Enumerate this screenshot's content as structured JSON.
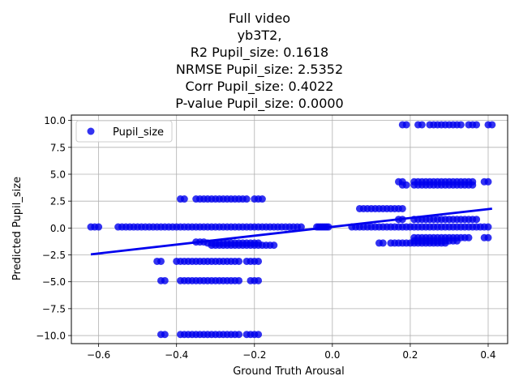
{
  "chart_data": {
    "type": "scatter",
    "title_lines": [
      "Full video",
      "yb3T2,",
      "R2 Pupil_size: 0.1618",
      "NRMSE Pupil_size: 2.5352",
      "Corr Pupil_size: 0.4022",
      "P-value Pupil_size: 0.0000"
    ],
    "xlabel": "Ground Truth Arousal",
    "ylabel": "Predicted Pupil_size",
    "xlim": [
      -0.67,
      0.45
    ],
    "ylim": [
      -10.75,
      10.5
    ],
    "xticks": [
      -0.6,
      -0.4,
      -0.2,
      0.0,
      0.2,
      0.4
    ],
    "xtick_labels": [
      "−0.6",
      "−0.4",
      "−0.2",
      "0.0",
      "0.2",
      "0.4"
    ],
    "yticks": [
      -10.0,
      -7.5,
      -5.0,
      -2.5,
      0.0,
      2.5,
      5.0,
      7.5,
      10.0
    ],
    "ytick_labels": [
      "−10.0",
      "−7.5",
      "−5.0",
      "−2.5",
      "0.0",
      "2.5",
      "5.0",
      "7.5",
      "10.0"
    ],
    "grid": true,
    "legend": {
      "position": "upper-left",
      "entries": [
        "Pupil_size"
      ]
    },
    "series": [
      {
        "name": "Pupil_size",
        "color": "#0000ee",
        "segments": [
          {
            "y": 0.1,
            "x_start": -0.62,
            "x_end": -0.6,
            "step": 0.01
          },
          {
            "y": 0.1,
            "x_start": -0.55,
            "x_end": -0.08,
            "step": 0.01
          },
          {
            "y": 0.1,
            "x_start": -0.04,
            "x_end": -0.01,
            "step": 0.005
          },
          {
            "y": 0.1,
            "x_start": 0.05,
            "x_end": 0.4,
            "step": 0.01
          },
          {
            "y": 2.7,
            "x_start": -0.39,
            "x_end": -0.38,
            "step": 0.01
          },
          {
            "y": 2.7,
            "x_start": -0.35,
            "x_end": -0.22,
            "step": 0.01
          },
          {
            "y": 2.7,
            "x_start": -0.2,
            "x_end": -0.18,
            "step": 0.01
          },
          {
            "y": -1.3,
            "x_start": -0.35,
            "x_end": -0.33,
            "step": 0.01
          },
          {
            "y": -1.4,
            "x_start": -0.32,
            "x_end": -0.19,
            "step": 0.01
          },
          {
            "y": -1.6,
            "x_start": -0.31,
            "x_end": -0.15,
            "step": 0.01
          },
          {
            "y": -3.1,
            "x_start": -0.45,
            "x_end": -0.44,
            "step": 0.01
          },
          {
            "y": -3.1,
            "x_start": -0.4,
            "x_end": -0.24,
            "step": 0.01
          },
          {
            "y": -3.1,
            "x_start": -0.22,
            "x_end": -0.19,
            "step": 0.01
          },
          {
            "y": -4.9,
            "x_start": -0.44,
            "x_end": -0.43,
            "step": 0.01
          },
          {
            "y": -4.9,
            "x_start": -0.39,
            "x_end": -0.24,
            "step": 0.01
          },
          {
            "y": -4.9,
            "x_start": -0.21,
            "x_end": -0.19,
            "step": 0.01
          },
          {
            "y": -9.9,
            "x_start": -0.44,
            "x_end": -0.43,
            "step": 0.01
          },
          {
            "y": -9.9,
            "x_start": -0.39,
            "x_end": -0.24,
            "step": 0.01
          },
          {
            "y": -9.9,
            "x_start": -0.22,
            "x_end": -0.19,
            "step": 0.01
          },
          {
            "y": 9.6,
            "x_start": 0.18,
            "x_end": 0.19,
            "step": 0.01
          },
          {
            "y": 9.6,
            "x_start": 0.22,
            "x_end": 0.23,
            "step": 0.01
          },
          {
            "y": 9.6,
            "x_start": 0.25,
            "x_end": 0.33,
            "step": 0.01
          },
          {
            "y": 9.6,
            "x_start": 0.35,
            "x_end": 0.37,
            "step": 0.01
          },
          {
            "y": 9.6,
            "x_start": 0.4,
            "x_end": 0.41,
            "step": 0.01
          },
          {
            "y": 4.3,
            "x_start": 0.17,
            "x_end": 0.18,
            "step": 0.01
          },
          {
            "y": 4.3,
            "x_start": 0.21,
            "x_end": 0.36,
            "step": 0.01
          },
          {
            "y": 4.3,
            "x_start": 0.39,
            "x_end": 0.4,
            "step": 0.01
          },
          {
            "y": 4.0,
            "x_start": 0.18,
            "x_end": 0.19,
            "step": 0.01
          },
          {
            "y": 4.0,
            "x_start": 0.21,
            "x_end": 0.36,
            "step": 0.01
          },
          {
            "y": 1.8,
            "x_start": 0.07,
            "x_end": 0.18,
            "step": 0.01
          },
          {
            "y": 0.8,
            "x_start": 0.17,
            "x_end": 0.18,
            "step": 0.01
          },
          {
            "y": 0.8,
            "x_start": 0.21,
            "x_end": 0.37,
            "step": 0.01
          },
          {
            "y": -0.9,
            "x_start": 0.21,
            "x_end": 0.35,
            "step": 0.01
          },
          {
            "y": -0.9,
            "x_start": 0.39,
            "x_end": 0.4,
            "step": 0.01
          },
          {
            "y": -1.4,
            "x_start": 0.12,
            "x_end": 0.13,
            "step": 0.01
          },
          {
            "y": -1.4,
            "x_start": 0.15,
            "x_end": 0.29,
            "step": 0.01
          },
          {
            "y": -1.2,
            "x_start": 0.21,
            "x_end": 0.32,
            "step": 0.01
          }
        ],
        "fit_line": {
          "x": [
            -0.62,
            0.41
          ],
          "y": [
            -2.45,
            1.8
          ]
        }
      }
    ]
  }
}
